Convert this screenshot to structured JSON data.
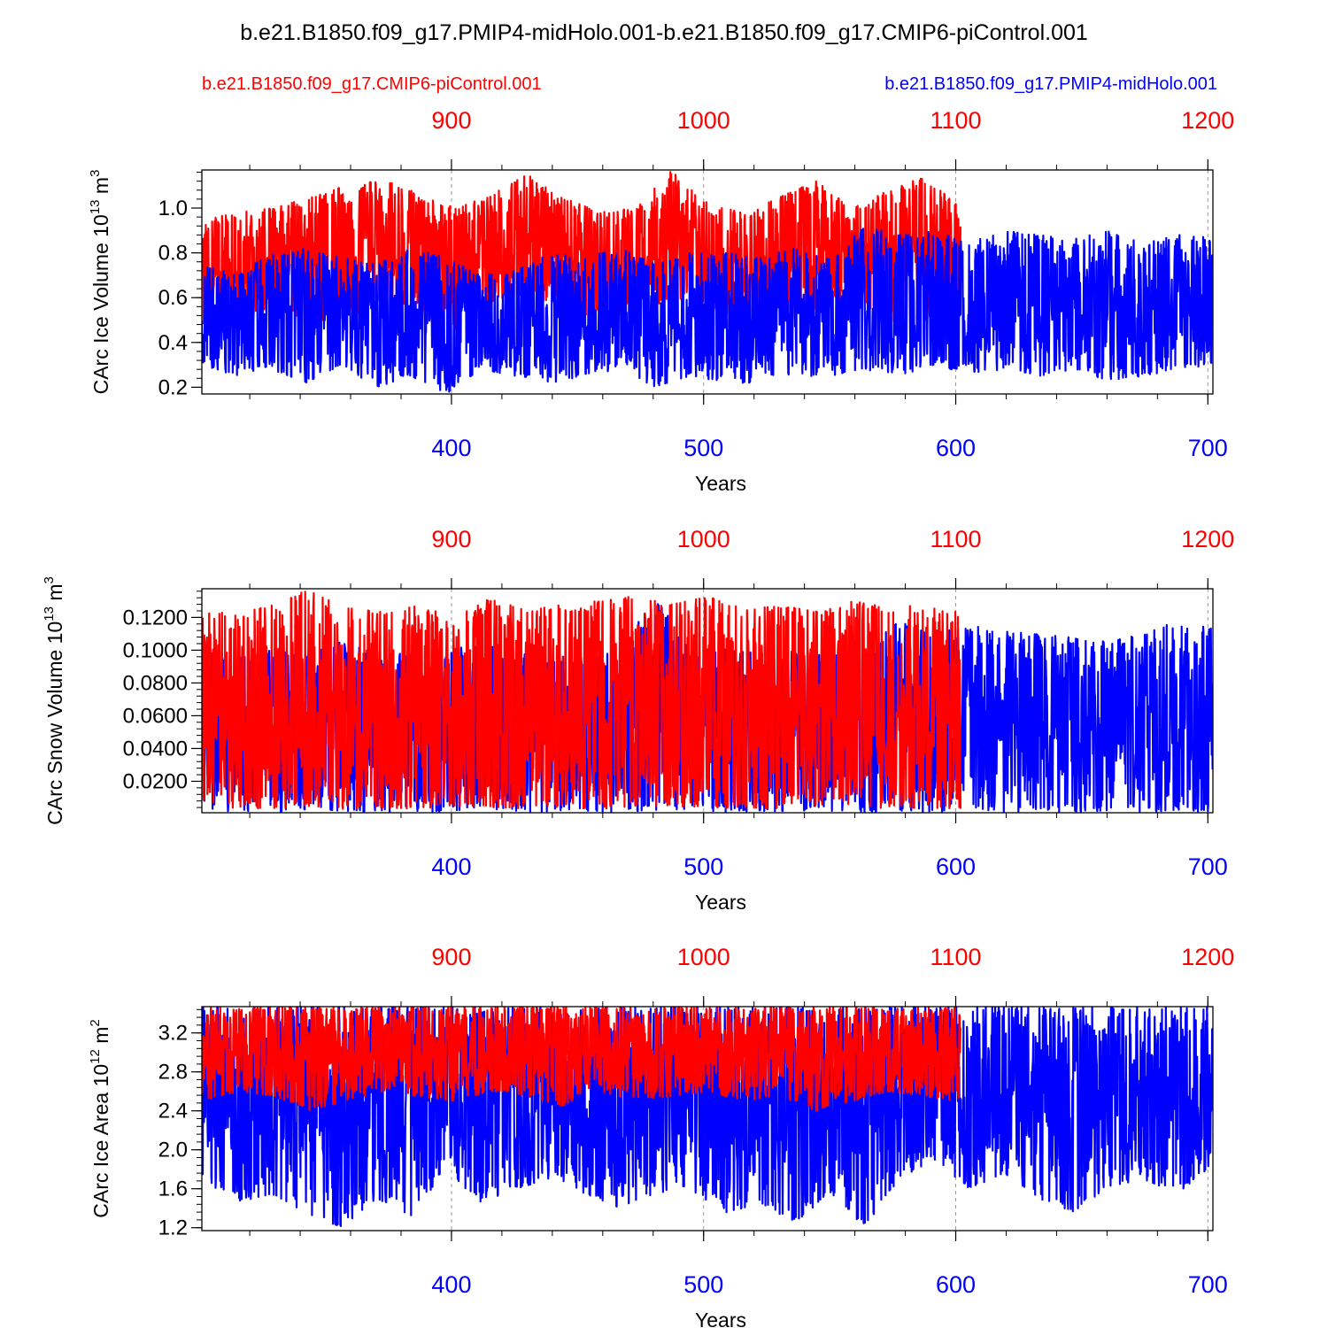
{
  "figure_title": "b.e21.B1850.f09_g17.PMIP4-midHolo.001-b.e21.B1850.f09_g17.CMIP6-piControl.001",
  "legend": {
    "left_label": "b.e21.B1850.f09_g17.CMIP6-piControl.001",
    "right_label": "b.e21.B1850.f09_g17.PMIP4-midHolo.001"
  },
  "colors": {
    "control": "#ff0000",
    "midholo": "#0000ff",
    "axis": "#000000",
    "grid": "#999999"
  },
  "chart_data": [
    {
      "type": "line",
      "title": "",
      "ylabel": "CArc Ice Volume 10",
      "ylabel_sup": "13",
      "ylabel_unit": " m",
      "ylabel_unit_sup": "3",
      "xlabel": "Years",
      "xlim": [
        301,
        702
      ],
      "ylim": [
        0.17,
        1.17
      ],
      "yticks": [
        0.2,
        0.4,
        0.6,
        0.8,
        1.0
      ],
      "ytick_labels": [
        "0.2",
        "0.4",
        "0.6",
        "0.8",
        "1.0"
      ],
      "bottom_xticks": [
        400,
        500,
        600,
        700
      ],
      "top_xticks": [
        900,
        1000,
        1100,
        1200
      ],
      "top_offset": 500,
      "series": [
        {
          "name": "b.e21.B1850.f09_g17.CMIP6-piControl.001",
          "color": "#ff0000",
          "x_range": [
            301,
            602
          ],
          "min_env": [
            0.45,
            0.5,
            0.55,
            0.47,
            0.5,
            0.6,
            0.55,
            0.45,
            0.58,
            0.62,
            0.55,
            0.5,
            0.52,
            0.6,
            0.55,
            0.5,
            0.48,
            0.55,
            0.6,
            0.5,
            0.45,
            0.55
          ],
          "max_env": [
            0.95,
            0.98,
            1.0,
            1.05,
            1.1,
            1.13,
            1.07,
            1.0,
            1.06,
            1.15,
            1.05,
            0.98,
            1.0,
            1.17,
            1.02,
            0.98,
            1.05,
            1.12,
            1.0,
            1.08,
            1.14,
            1.0
          ]
        },
        {
          "name": "b.e21.B1850.f09_g17.PMIP4-midHolo.001",
          "color": "#0000ff",
          "x_range": [
            301,
            702
          ],
          "min_env": [
            0.3,
            0.25,
            0.28,
            0.22,
            0.3,
            0.2,
            0.25,
            0.17,
            0.28,
            0.25,
            0.22,
            0.25,
            0.28,
            0.2,
            0.25,
            0.22,
            0.22,
            0.25,
            0.25,
            0.28,
            0.25,
            0.3,
            0.26,
            0.28,
            0.25,
            0.28,
            0.23,
            0.25,
            0.28,
            0.3
          ],
          "max_env": [
            0.75,
            0.7,
            0.8,
            0.82,
            0.78,
            0.75,
            0.82,
            0.78,
            0.7,
            0.72,
            0.8,
            0.78,
            0.82,
            0.75,
            0.8,
            0.8,
            0.78,
            0.82,
            0.78,
            0.92,
            0.88,
            0.9,
            0.85,
            0.9,
            0.88,
            0.86,
            0.9,
            0.84,
            0.88,
            0.87
          ]
        }
      ]
    },
    {
      "type": "line",
      "title": "",
      "ylabel": "CArc Snow Volume 10",
      "ylabel_sup": "13",
      "ylabel_unit": " m",
      "ylabel_unit_sup": "3",
      "xlabel": "Years",
      "xlim": [
        301,
        702
      ],
      "ylim": [
        0.0008,
        0.1375
      ],
      "yticks": [
        0.02,
        0.04,
        0.06,
        0.08,
        0.1,
        0.12
      ],
      "ytick_labels": [
        "0.0200",
        "0.0400",
        "0.0600",
        "0.0800",
        "0.1000",
        "0.1200"
      ],
      "bottom_xticks": [
        400,
        500,
        600,
        700
      ],
      "top_xticks": [
        900,
        1000,
        1100,
        1200
      ],
      "top_offset": 500,
      "series": [
        {
          "name": "b.e21.B1850.f09_g17.PMIP4-midHolo.001",
          "color": "#0000ff",
          "x_range": [
            301,
            702
          ],
          "min_env": [
            0.001,
            0.002,
            0.001,
            0.003,
            0.002,
            0.001,
            0.002,
            0.001,
            0.003,
            0.002,
            0.001,
            0.002,
            0.001,
            0.002,
            0.003,
            0.001,
            0.002,
            0.001,
            0.002,
            0.001,
            0.002,
            0.001,
            0.002,
            0.001,
            0.002,
            0.001,
            0.002,
            0.001,
            0.002,
            0.001
          ],
          "max_env": [
            0.1,
            0.095,
            0.1,
            0.098,
            0.105,
            0.1,
            0.097,
            0.1,
            0.104,
            0.098,
            0.1,
            0.096,
            0.1,
            0.133,
            0.1,
            0.102,
            0.098,
            0.1,
            0.097,
            0.1,
            0.118,
            0.11,
            0.115,
            0.112,
            0.11,
            0.108,
            0.105,
            0.11,
            0.118,
            0.113
          ]
        },
        {
          "name": "b.e21.B1850.f09_g17.CMIP6-piControl.001",
          "color": "#ff0000",
          "x_range": [
            301,
            602
          ],
          "min_env": [
            0.003,
            0.004,
            0.003,
            0.005,
            0.003,
            0.004,
            0.003,
            0.005,
            0.004,
            0.003,
            0.004,
            0.003,
            0.005,
            0.004,
            0.003,
            0.004,
            0.003,
            0.004,
            0.005,
            0.003,
            0.004,
            0.003
          ],
          "max_env": [
            0.124,
            0.122,
            0.128,
            0.138,
            0.126,
            0.124,
            0.127,
            0.12,
            0.132,
            0.125,
            0.128,
            0.13,
            0.133,
            0.128,
            0.133,
            0.125,
            0.127,
            0.124,
            0.13,
            0.126,
            0.128,
            0.125
          ]
        }
      ]
    },
    {
      "type": "line",
      "title": "",
      "ylabel": "CArc Ice Area 10",
      "ylabel_sup": "12",
      "ylabel_unit": " m",
      "ylabel_unit_sup": "2",
      "xlabel": "Years",
      "xlim": [
        301,
        702
      ],
      "ylim": [
        1.17,
        3.47
      ],
      "yticks": [
        1.2,
        1.6,
        2.0,
        2.4,
        2.8,
        3.2
      ],
      "ytick_labels": [
        "1.2",
        "1.6",
        "2.0",
        "2.4",
        "2.8",
        "3.2"
      ],
      "bottom_xticks": [
        400,
        500,
        600,
        700
      ],
      "top_xticks": [
        900,
        1000,
        1100,
        1200
      ],
      "top_offset": 500,
      "series": [
        {
          "name": "b.e21.B1850.f09_g17.PMIP4-midHolo.001",
          "color": "#0000ff",
          "x_range": [
            301,
            702
          ],
          "min_env": [
            1.7,
            1.45,
            1.55,
            1.35,
            1.2,
            1.5,
            1.3,
            1.8,
            1.45,
            1.6,
            1.7,
            1.55,
            1.4,
            1.55,
            1.6,
            1.35,
            1.45,
            1.25,
            1.55,
            1.2,
            1.7,
            1.9,
            1.6,
            1.75,
            1.5,
            1.35,
            1.6,
            1.7,
            1.55,
            1.85
          ],
          "max_env": [
            3.47,
            3.47,
            3.47,
            3.47,
            3.47,
            3.47,
            3.47,
            3.47,
            3.47,
            3.47,
            3.47,
            3.47,
            3.47,
            3.47,
            3.47,
            3.47,
            3.47,
            3.47,
            3.47,
            3.47,
            3.47,
            3.47,
            3.47,
            3.47,
            3.47,
            3.47,
            3.47,
            3.47,
            3.47,
            3.47
          ]
        },
        {
          "name": "b.e21.B1850.f09_g17.CMIP6-piControl.001",
          "color": "#ff0000",
          "x_range": [
            301,
            602
          ],
          "min_env": [
            2.5,
            2.6,
            2.55,
            2.4,
            2.5,
            2.6,
            2.55,
            2.5,
            2.6,
            2.55,
            2.45,
            2.6,
            2.5,
            2.55,
            2.6,
            2.5,
            2.55,
            2.4,
            2.5,
            2.6,
            2.55,
            2.5
          ],
          "max_env": [
            3.47,
            3.47,
            3.47,
            3.47,
            3.47,
            3.47,
            3.47,
            3.47,
            3.47,
            3.47,
            3.47,
            3.47,
            3.47,
            3.47,
            3.47,
            3.47,
            3.47,
            3.47,
            3.47,
            3.47,
            3.47,
            3.47
          ]
        }
      ]
    }
  ]
}
